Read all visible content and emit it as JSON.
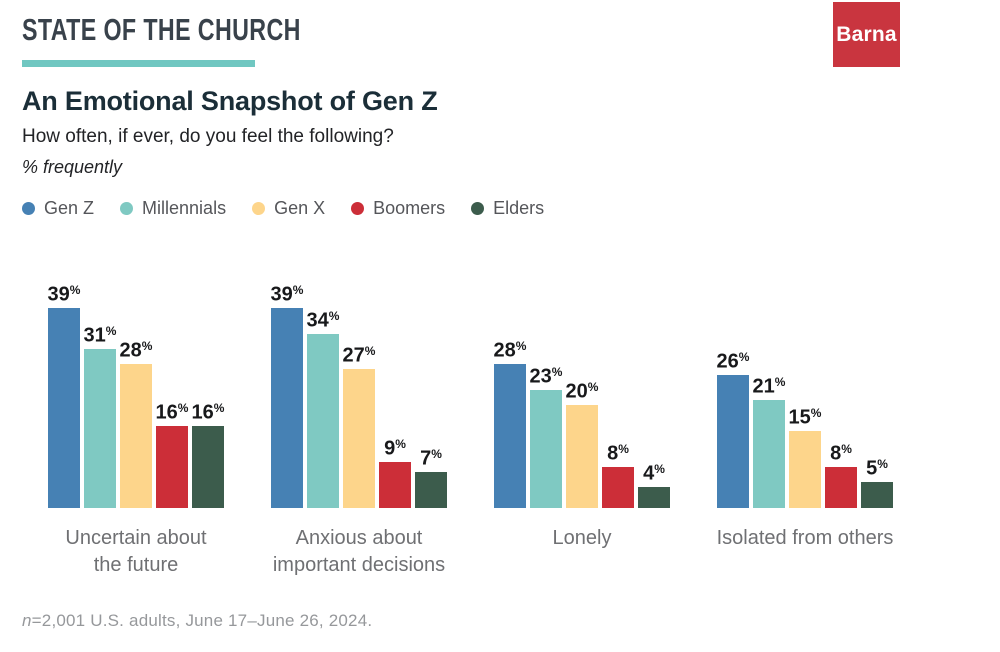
{
  "header": {
    "brand": "STATE OF THE CHURCH",
    "logo_text": "Barna",
    "title": "An Emotional Snapshot of Gen Z",
    "subtitle": "How often, if ever, do you feel the following?",
    "metric_note": "% frequently"
  },
  "colors": {
    "accent_teal": "#70c7c1",
    "logo_red": "#c9353f",
    "title_dark": "#1b2e38",
    "category_label_gray": "#6f7073",
    "footnote_gray": "#96989b"
  },
  "chart_data": {
    "type": "bar",
    "title": "An Emotional Snapshot of Gen Z",
    "subtitle": "How often, if ever, do you feel the following?",
    "unit": "% frequently",
    "value_suffix": "%",
    "categories": [
      "Uncertain about\nthe future",
      "Anxious about\nimportant decisions",
      "Lonely",
      "Isolated from others"
    ],
    "series": [
      {
        "name": "Gen Z",
        "color": "#4681b4",
        "values": [
          39,
          39,
          28,
          26
        ]
      },
      {
        "name": "Millennials",
        "color": "#7fc9c2",
        "values": [
          31,
          34,
          23,
          21
        ]
      },
      {
        "name": "Gen X",
        "color": "#fdd58b",
        "values": [
          28,
          27,
          20,
          15
        ]
      },
      {
        "name": "Boomers",
        "color": "#cc2e38",
        "values": [
          16,
          9,
          8,
          8
        ]
      },
      {
        "name": "Elders",
        "color": "#3c5c4c",
        "values": [
          16,
          7,
          4,
          5
        ]
      }
    ],
    "ylim": [
      0,
      39
    ],
    "grid": false,
    "axes_visible": false,
    "legend_position": "top",
    "value_labels": "above-bars"
  },
  "footnote": {
    "prefix_italic": "n",
    "text": "=2,001 U.S. adults, June 17–June 26, 2024."
  }
}
